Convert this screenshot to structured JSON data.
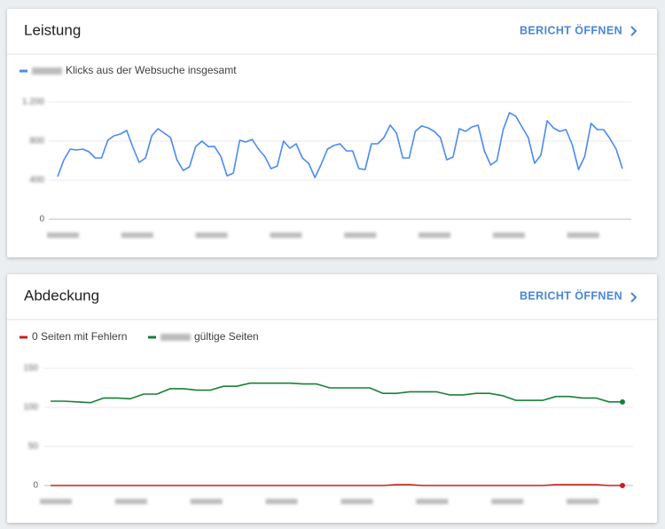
{
  "chart_data": [
    {
      "type": "line",
      "title": "Leistung",
      "link_text": "BERICHT ÖFFNEN",
      "ylim": [
        0,
        1200
      ],
      "yticks": [
        0,
        400,
        800,
        {
          "value": 1200,
          "label": "1.200"
        }
      ],
      "grid": true,
      "series": [
        {
          "name": "Klicks aus der Websuche insgesamt",
          "color": "#4a8af4",
          "values": [
            436,
            609,
            718,
            709,
            718,
            691,
            627,
            627,
            809,
            855,
            873,
            909,
            736,
            582,
            627,
            855,
            927,
            882,
            836,
            609,
            500,
            536,
            745,
            800,
            745,
            745,
            645,
            445,
            473,
            809,
            791,
            818,
            718,
            645,
            518,
            545,
            800,
            727,
            773,
            627,
            573,
            427,
            564,
            718,
            755,
            773,
            700,
            700,
            518,
            509,
            773,
            773,
            836,
            964,
            882,
            627,
            627,
            900,
            955,
            936,
            900,
            836,
            609,
            636,
            927,
            900,
            945,
            964,
            700,
            555,
            600,
            918,
            1091,
            1055,
            945,
            836,
            573,
            655,
            1009,
            936,
            900,
            918,
            764,
            509,
            645,
            982,
            918,
            918,
            827,
            718,
            518
          ]
        }
      ]
    },
    {
      "type": "line",
      "title": "Abdeckung",
      "link_text": "BERICHT ÖFFNEN",
      "ylim": [
        0,
        150
      ],
      "yticks": [
        0,
        50,
        100,
        150
      ],
      "grid": true,
      "series": [
        {
          "name": "0 Seiten mit Fehlern",
          "color": "#c5221f",
          "values": [
            0,
            0,
            0,
            0,
            0,
            0,
            0,
            0,
            0,
            0,
            0,
            0,
            0,
            0,
            0,
            0,
            0,
            0,
            0,
            0,
            0,
            0,
            0,
            0,
            0,
            0,
            1,
            1,
            0,
            0,
            0,
            0,
            0,
            0,
            0,
            0,
            0,
            0,
            1,
            1,
            1,
            1,
            0,
            0
          ]
        },
        {
          "name": "gültige Seiten",
          "color": "#188038",
          "values": [
            108,
            108,
            107,
            106,
            112,
            112,
            111,
            117,
            117,
            124,
            124,
            122,
            122,
            127,
            127,
            131,
            131,
            131,
            131,
            130,
            130,
            125,
            125,
            125,
            125,
            118,
            118,
            120,
            120,
            120,
            116,
            116,
            118,
            118,
            115,
            109,
            109,
            109,
            114,
            114,
            112,
            112,
            107,
            107
          ]
        }
      ]
    }
  ]
}
